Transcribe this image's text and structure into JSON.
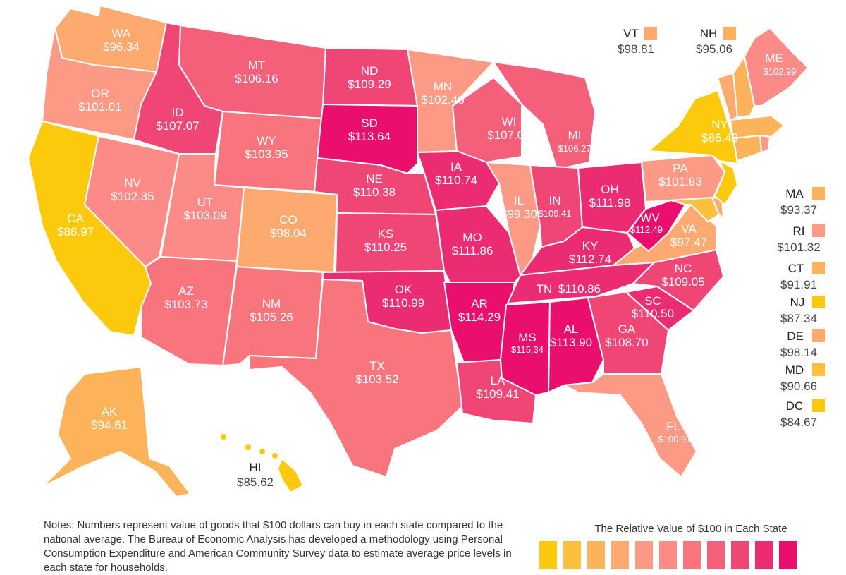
{
  "colors": {
    "lowest": "#fcc90c",
    "low1": "#fdbf3e",
    "low2": "#fdb35a",
    "low3": "#fea970",
    "mid1": "#fd9a86",
    "mid2": "#fc8a86",
    "mid3": "#f9757e",
    "high1": "#f45f79",
    "high2": "#ef4675",
    "high3": "#ec2c72",
    "highest": "#ea0e6d"
  },
  "states": {
    "WA": {
      "value": "$96.34"
    },
    "OR": {
      "value": "$101.01"
    },
    "CA": {
      "value": "$88.97"
    },
    "NV": {
      "value": "$102.35"
    },
    "ID": {
      "value": "$107.07"
    },
    "MT": {
      "value": "$106.16"
    },
    "WY": {
      "value": "$103.95"
    },
    "UT": {
      "value": "$103.09"
    },
    "AZ": {
      "value": "$103.73"
    },
    "CO": {
      "value": "$98.04"
    },
    "NM": {
      "value": "$105.26"
    },
    "ND": {
      "value": "$109.29"
    },
    "SD": {
      "value": "$113.64"
    },
    "NE": {
      "value": "$110.38"
    },
    "KS": {
      "value": "$110.25"
    },
    "OK": {
      "value": "$110.99"
    },
    "TX": {
      "value": "$103.52"
    },
    "MN": {
      "value": "$102.46"
    },
    "IA": {
      "value": "$110.74"
    },
    "MO": {
      "value": "$111.86"
    },
    "AR": {
      "value": "$114.29"
    },
    "LA": {
      "value": "$109.41"
    },
    "WI": {
      "value": "$107.07"
    },
    "IL": {
      "value": "$99.30"
    },
    "MI": {
      "value": "$106.27"
    },
    "IN": {
      "value": "$109.41"
    },
    "OH": {
      "value": "$111.98"
    },
    "KY": {
      "value": "$112.74"
    },
    "TN": {
      "value": "$110.86"
    },
    "MS": {
      "value": "$115.34"
    },
    "AL": {
      "value": "$113.90"
    },
    "GA": {
      "value": "$108.70"
    },
    "FL": {
      "value": "$100.91"
    },
    "SC": {
      "value": "$110.50"
    },
    "NC": {
      "value": "$109.05"
    },
    "VA": {
      "value": "$97.47"
    },
    "WV": {
      "value": "$112.49"
    },
    "PA": {
      "value": "$101.83"
    },
    "NY": {
      "value": "$86.43"
    },
    "ME": {
      "value": "$102.99"
    },
    "AK": {
      "value": "$94.61"
    },
    "HI": {
      "value": "$85.62"
    },
    "VT": {
      "value": "$98.81"
    },
    "NH": {
      "value": "$95.06"
    },
    "MA": {
      "value": "$93.37"
    },
    "RI": {
      "value": "$101.32"
    },
    "CT": {
      "value": "$91.91"
    },
    "NJ": {
      "value": "$87.34"
    },
    "DE": {
      "value": "$98.14"
    },
    "MD": {
      "value": "$90.66"
    },
    "DC": {
      "value": "$84.67"
    }
  },
  "notes": "Notes: Numbers represent value of goods that $100 dollars can buy in each state compared to the national average. The Bureau of Economic Analysis has developed a methodology using Personal Consumption Expenditure and American Community Survey data to estimate average price levels in each state for households.",
  "legend": {
    "title": "The Relative Value of $100 in Each State",
    "swatches": [
      "#fcc90c",
      "#fdbf3e",
      "#fdb35a",
      "#fea970",
      "#fd9a86",
      "#fc8a86",
      "#f9757e",
      "#f45f79",
      "#ef4675",
      "#ec2c72",
      "#ea0e6d"
    ]
  }
}
